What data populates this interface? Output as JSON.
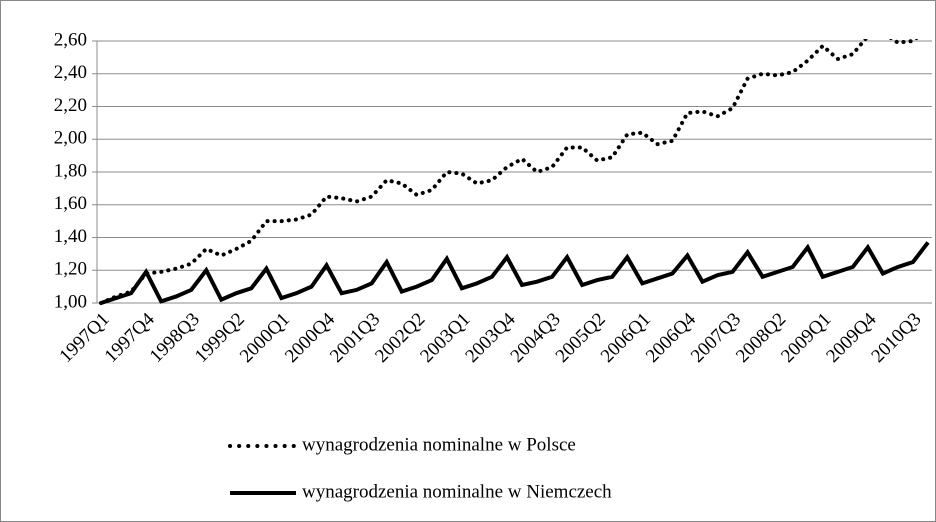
{
  "chart_data": {
    "type": "line",
    "categories": [
      "1997Q1",
      null,
      null,
      "1997Q4",
      null,
      null,
      "1998Q3",
      null,
      null,
      "1999Q2",
      null,
      null,
      "2000Q1",
      null,
      null,
      "2000Q4",
      null,
      null,
      "2001Q3",
      null,
      null,
      "2002Q2",
      null,
      null,
      "2003Q1",
      null,
      null,
      "2003Q4",
      null,
      null,
      "2004Q3",
      null,
      null,
      "2005Q2",
      null,
      null,
      "2006Q1",
      null,
      null,
      "2006Q4",
      null,
      null,
      "2007Q3",
      null,
      null,
      "2008Q2",
      null,
      null,
      "2009Q1",
      null,
      null,
      "2009Q4",
      null,
      null,
      "2010Q3",
      null
    ],
    "series": [
      {
        "name": "wynagrodzenia nominalne w Polsce",
        "color": "#000000",
        "line_style": "dotted",
        "values": [
          1.0,
          1.04,
          1.07,
          1.18,
          1.19,
          1.21,
          1.24,
          1.33,
          1.29,
          1.33,
          1.38,
          1.5,
          1.5,
          1.51,
          1.54,
          1.65,
          1.64,
          1.62,
          1.65,
          1.75,
          1.73,
          1.66,
          1.69,
          1.8,
          1.79,
          1.73,
          1.75,
          1.83,
          1.88,
          1.8,
          1.83,
          1.95,
          1.95,
          1.87,
          1.89,
          2.03,
          2.04,
          1.97,
          1.99,
          2.16,
          2.17,
          2.14,
          2.19,
          2.37,
          2.4,
          2.39,
          2.41,
          2.48,
          2.57,
          2.49,
          2.52,
          2.63,
          2.65,
          2.59,
          2.6,
          2.68
        ]
      },
      {
        "name": "wynagrodzenia nominalne w Niemczech",
        "color": "#000000",
        "line_style": "solid",
        "values": [
          1.0,
          1.03,
          1.06,
          1.19,
          1.01,
          1.04,
          1.08,
          1.2,
          1.02,
          1.06,
          1.09,
          1.21,
          1.03,
          1.06,
          1.1,
          1.23,
          1.06,
          1.08,
          1.12,
          1.25,
          1.07,
          1.1,
          1.14,
          1.27,
          1.09,
          1.12,
          1.16,
          1.28,
          1.11,
          1.13,
          1.16,
          1.28,
          1.11,
          1.14,
          1.16,
          1.28,
          1.12,
          1.15,
          1.18,
          1.29,
          1.13,
          1.17,
          1.19,
          1.31,
          1.16,
          1.19,
          1.22,
          1.34,
          1.16,
          1.19,
          1.22,
          1.34,
          1.18,
          1.22,
          1.25,
          1.37
        ]
      }
    ],
    "ylim": [
      1.0,
      2.6
    ],
    "yticks": [
      {
        "value": 1.0,
        "label": "1,00"
      },
      {
        "value": 1.2,
        "label": "1,20"
      },
      {
        "value": 1.4,
        "label": "1,40"
      },
      {
        "value": 1.6,
        "label": "1,60"
      },
      {
        "value": 1.8,
        "label": "1,80"
      },
      {
        "value": 2.0,
        "label": "2,00"
      },
      {
        "value": 2.2,
        "label": "2,20"
      },
      {
        "value": 2.4,
        "label": "2,40"
      },
      {
        "value": 2.6,
        "label": "2,60"
      }
    ],
    "grid": true,
    "legend": "bottom"
  }
}
